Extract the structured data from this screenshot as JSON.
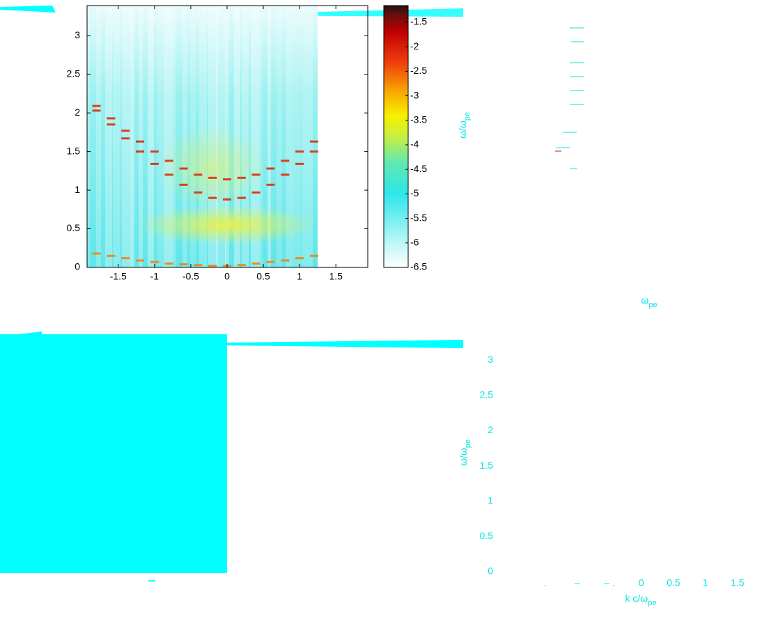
{
  "chart_data": [
    {
      "type": "heatmap",
      "xlim": [
        -1.93,
        1.94
      ],
      "ylim": [
        0,
        3.39
      ],
      "xticks": [
        -1.5,
        -1,
        -0.5,
        0,
        0.5,
        1,
        1.5
      ],
      "yticks": [
        0,
        0.5,
        1,
        1.5,
        2,
        2.5,
        3
      ],
      "series": [
        {
          "color": "#d8401c",
          "x": [
            -1.8,
            -1.6,
            -1.4,
            -1.2,
            -1.0,
            -0.8,
            -0.6,
            -0.4,
            -0.2,
            0,
            0.2,
            0.4,
            0.6,
            0.8,
            1.0,
            1.2
          ],
          "values": [
            2.09,
            1.93,
            1.77,
            1.63,
            1.5,
            1.38,
            1.28,
            1.2,
            1.16,
            1.14,
            1.16,
            1.2,
            1.28,
            1.38,
            1.5,
            1.63
          ]
        },
        {
          "color": "#d8401c",
          "x": [
            -1.8,
            -1.6,
            -1.4,
            -1.2,
            -1.0,
            -0.8,
            -0.6,
            -0.4,
            -0.2,
            0,
            0.2,
            0.4,
            0.6,
            0.8,
            1.0,
            1.2
          ],
          "values": [
            2.03,
            1.85,
            1.67,
            1.5,
            1.34,
            1.2,
            1.07,
            0.97,
            0.9,
            0.88,
            0.9,
            0.97,
            1.07,
            1.2,
            1.34,
            1.5
          ]
        },
        {
          "color": "#f08a20",
          "x": [
            -1.8,
            -1.6,
            -1.4,
            -1.2,
            -1.0,
            -0.8,
            -0.6,
            -0.4,
            -0.2,
            0,
            0.2,
            0.4,
            0.6,
            0.8,
            1.0,
            1.2
          ],
          "values": [
            0.18,
            0.15,
            0.12,
            0.09,
            0.07,
            0.05,
            0.04,
            0.03,
            0.02,
            0.02,
            0.03,
            0.05,
            0.07,
            0.09,
            0.12,
            0.15
          ]
        }
      ],
      "clim": [
        -6.5,
        -1.16
      ],
      "cticks": [
        -1.5,
        -2,
        -2.5,
        -3,
        -3.5,
        -4,
        -4.5,
        -5,
        -5.5,
        -6,
        -6.5
      ],
      "colorbar_label": {
        "main": "ω/ω",
        "sub": "pe"
      }
    },
    {
      "type": "line",
      "xlim": [
        -2.4,
        1.85
      ],
      "ylim": [
        0,
        3.2
      ],
      "xticks": [
        {
          "value": -1.5,
          "label": "."
        },
        {
          "value": -1,
          "label": "–"
        },
        {
          "value": -0.5,
          "label": "– ."
        },
        0,
        0.5,
        1,
        1.5
      ],
      "yticks": [
        0,
        0.5,
        1,
        1.5,
        2,
        2.5,
        3
      ],
      "xlabel": {
        "main": "k c/ω",
        "sub": "pe"
      },
      "ylabel": {
        "main": "ω/ω",
        "sub": "pe"
      },
      "annotation": {
        "main": "ω",
        "sub": "pe"
      }
    }
  ]
}
